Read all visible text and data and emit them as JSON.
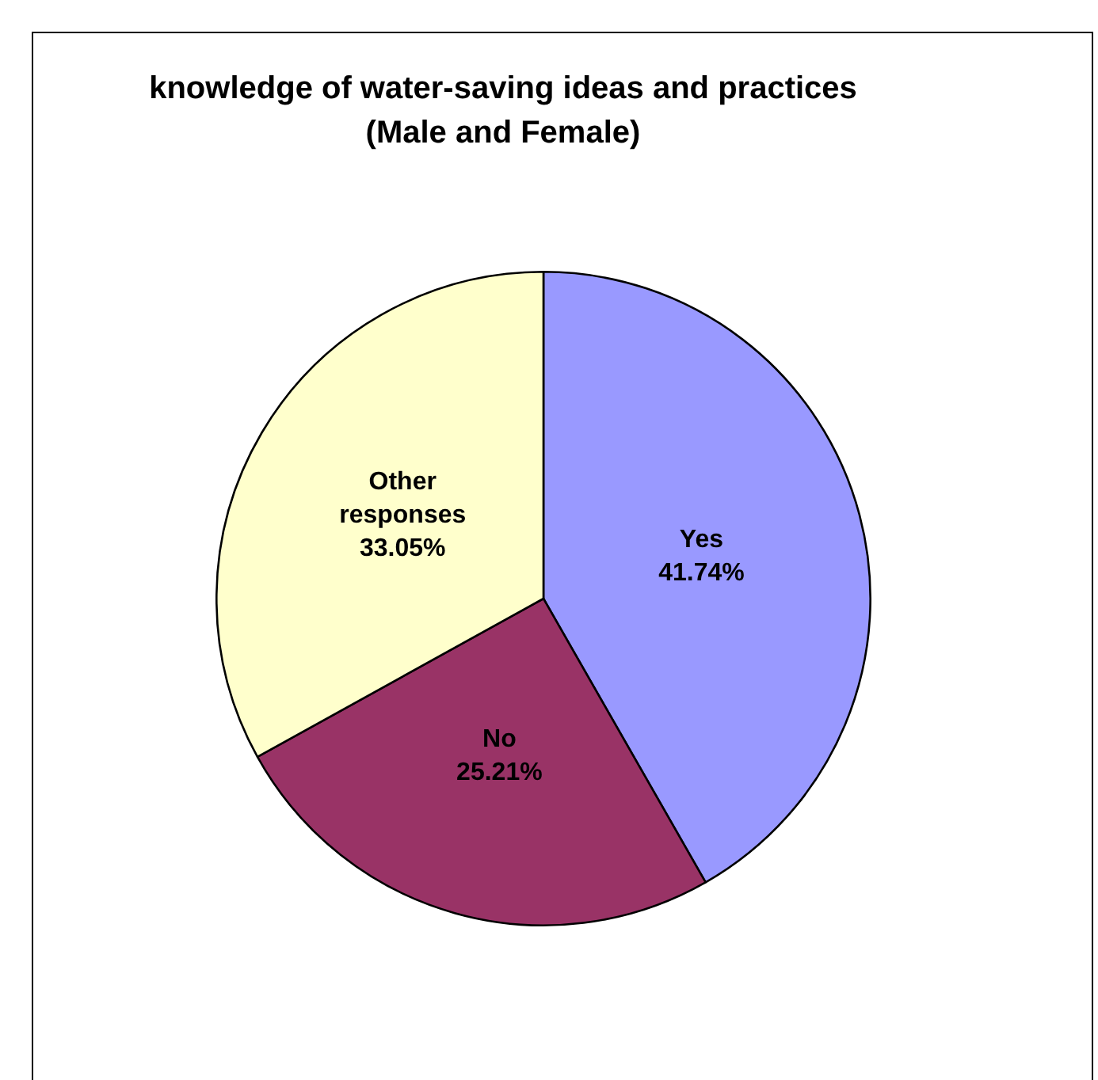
{
  "chart_data": {
    "type": "pie",
    "title": "knowledge of water-saving ideas and practices",
    "subtitle": "(Male and Female)",
    "categories": [
      "Yes",
      "No",
      "Other responses"
    ],
    "values": [
      41.74,
      25.21,
      33.05
    ],
    "value_labels": [
      "41.74%",
      "25.21%",
      "33.05%"
    ],
    "colors": [
      "#9999ff",
      "#993366",
      "#ffffcc"
    ],
    "legend": false
  }
}
